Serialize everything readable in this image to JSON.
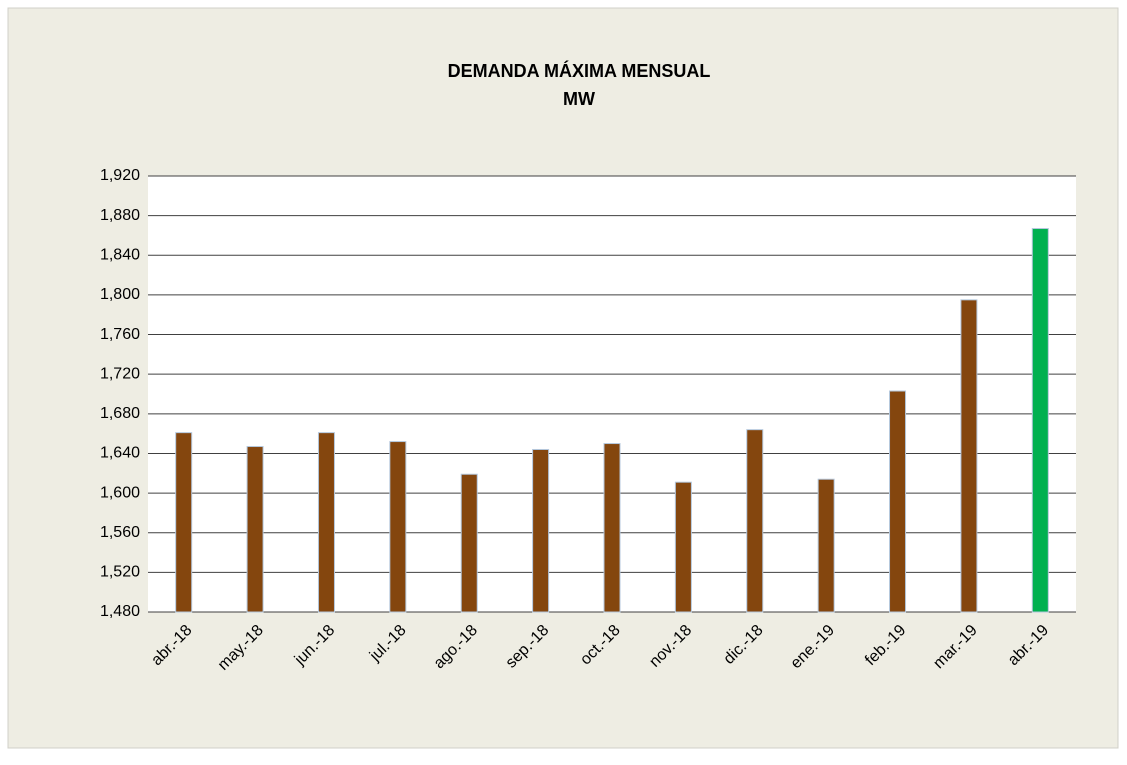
{
  "chart_data": {
    "type": "bar",
    "title": "DEMANDA  MÁXIMA  MENSUAL",
    "subtitle": "MW",
    "categories": [
      "abr.-18",
      "may.-18",
      "jun.-18",
      "jul.-18",
      "ago.-18",
      "sep.-18",
      "oct.-18",
      "nov.-18",
      "dic.-18",
      "ene.-19",
      "feb.-19",
      "mar.-19",
      "abr.-19"
    ],
    "values": [
      1661,
      1647,
      1661,
      1652,
      1619,
      1644,
      1650,
      1611,
      1664,
      1614,
      1703,
      1795,
      1867
    ],
    "colors": [
      "#84460e",
      "#84460e",
      "#84460e",
      "#84460e",
      "#84460e",
      "#84460e",
      "#84460e",
      "#84460e",
      "#84460e",
      "#84460e",
      "#84460e",
      "#84460e",
      "#00b050"
    ],
    "ylim": [
      1480,
      1920
    ],
    "yticks": [
      {
        "value": 1480,
        "label": "1,480"
      },
      {
        "value": 1520,
        "label": "1,520"
      },
      {
        "value": 1560,
        "label": "1,560"
      },
      {
        "value": 1600,
        "label": "1,600"
      },
      {
        "value": 1640,
        "label": "1,640"
      },
      {
        "value": 1680,
        "label": "1,680"
      },
      {
        "value": 1720,
        "label": "1,720"
      },
      {
        "value": 1760,
        "label": "1,760"
      },
      {
        "value": 1800,
        "label": "1,800"
      },
      {
        "value": 1840,
        "label": "1,840"
      },
      {
        "value": 1880,
        "label": "1,880"
      },
      {
        "value": 1920,
        "label": "1,920"
      }
    ],
    "grid": true
  }
}
